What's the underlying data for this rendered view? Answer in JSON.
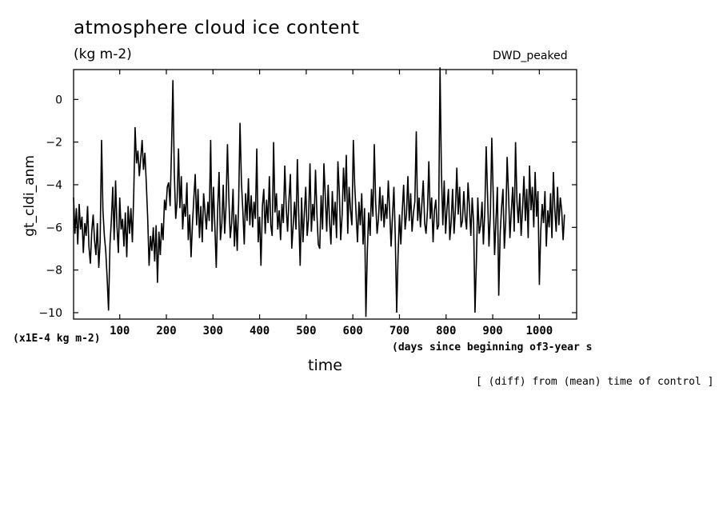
{
  "chart_data": {
    "type": "line",
    "title": "atmosphere cloud ice content",
    "units": "(kg m-2)",
    "run_label": "DWD_peaked",
    "ylabel": "gt_cldi_anm",
    "xlabel": "time",
    "x_note": "(days since beginning of3-year s",
    "y_scale_note": "(x1E-4 kg m-2)",
    "footnote": "[ (diff) from (mean) time of control ]",
    "xlim": [
      1,
      1080
    ],
    "ylim": [
      -10.3,
      1.4
    ],
    "x_ticks": [
      100,
      200,
      300,
      400,
      500,
      600,
      700,
      800,
      900,
      1000
    ],
    "y_ticks": [
      0,
      -2,
      -4,
      -6,
      -8,
      -10
    ],
    "series": [
      {
        "name": "gt_cldi_anm",
        "step": 3,
        "values": [
          -4.6,
          -6.3,
          -5.1,
          -6.8,
          -4.9,
          -6.1,
          -5.5,
          -7.2,
          -5.8,
          -6.4,
          -5.0,
          -6.9,
          -7.7,
          -6.2,
          -5.4,
          -6.6,
          -7.3,
          -5.8,
          -7.9,
          -6.7,
          -1.9,
          -5.2,
          -6.4,
          -7.1,
          -8.4,
          -9.9,
          -6.8,
          -5.7,
          -4.1,
          -6.6,
          -3.8,
          -5.9,
          -7.2,
          -4.6,
          -6.1,
          -5.6,
          -6.9,
          -5.3,
          -7.4,
          -5.0,
          -6.3,
          -5.1,
          -6.7,
          -4.5,
          -1.3,
          -3.0,
          -2.4,
          -3.6,
          -2.8,
          -1.9,
          -3.3,
          -2.5,
          -3.9,
          -5.6,
          -7.8,
          -6.4,
          -7.1,
          -6.0,
          -7.6,
          -5.9,
          -8.6,
          -6.2,
          -7.3,
          -5.8,
          -6.6,
          -4.7,
          -5.2,
          -4.1,
          -3.9,
          -5.0,
          -2.4,
          0.9,
          -3.4,
          -5.6,
          -4.8,
          -2.3,
          -5.1,
          -3.6,
          -6.1,
          -4.9,
          -5.5,
          -3.9,
          -6.6,
          -5.4,
          -7.4,
          -5.8,
          -4.6,
          -3.5,
          -5.9,
          -4.2,
          -6.5,
          -5.0,
          -6.7,
          -4.4,
          -5.3,
          -6.1,
          -4.8,
          -5.7,
          -1.9,
          -6.2,
          -4.1,
          -5.9,
          -7.9,
          -5.2,
          -3.4,
          -6.6,
          -5.8,
          -4.0,
          -6.3,
          -5.0,
          -2.1,
          -4.6,
          -6.5,
          -5.8,
          -4.2,
          -6.9,
          -5.4,
          -7.1,
          -4.8,
          -1.1,
          -3.9,
          -5.2,
          -6.8,
          -4.4,
          -5.7,
          -3.7,
          -5.9,
          -4.5,
          -6.0,
          -4.8,
          -5.6,
          -2.3,
          -6.7,
          -5.5,
          -7.8,
          -5.0,
          -4.2,
          -6.3,
          -4.7,
          -5.8,
          -3.6,
          -5.9,
          -6.4,
          -2.0,
          -5.3,
          -4.4,
          -6.1,
          -5.2,
          -6.6,
          -4.9,
          -5.8,
          -3.1,
          -5.0,
          -6.2,
          -4.7,
          -3.5,
          -7.0,
          -5.9,
          -4.8,
          -6.1,
          -2.8,
          -5.5,
          -7.8,
          -4.6,
          -6.7,
          -5.3,
          -4.1,
          -6.4,
          -5.6,
          -3.0,
          -6.2,
          -4.9,
          -5.7,
          -3.3,
          -5.4,
          -6.8,
          -7.0,
          -4.5,
          -6.1,
          -3.0,
          -4.6,
          -6.2,
          -4.0,
          -5.7,
          -6.8,
          -4.3,
          -5.9,
          -4.8,
          -6.5,
          -2.9,
          -4.4,
          -6.6,
          -5.4,
          -3.2,
          -4.8,
          -2.6,
          -6.3,
          -4.1,
          -5.2,
          -5.9,
          -1.9,
          -4.0,
          -5.4,
          -6.7,
          -4.8,
          -5.9,
          -4.4,
          -6.8,
          -5.1,
          -10.2,
          -7.1,
          -5.3,
          -6.4,
          -4.2,
          -5.5,
          -2.1,
          -4.8,
          -6.3,
          -5.6,
          -4.1,
          -5.7,
          -4.5,
          -6.0,
          -4.9,
          -5.6,
          -3.8,
          -5.2,
          -6.9,
          -5.5,
          -4.1,
          -6.4,
          -10.0,
          -7.3,
          -5.4,
          -6.8,
          -5.2,
          -4.0,
          -6.1,
          -5.4,
          -3.6,
          -5.7,
          -4.4,
          -6.2,
          -5.3,
          -4.8,
          -1.5,
          -5.7,
          -4.6,
          -6.0,
          -4.9,
          -3.8,
          -5.8,
          -6.3,
          -5.2,
          -2.9,
          -5.6,
          -4.6,
          -6.7,
          -5.2,
          -4.7,
          -6.1,
          -5.9,
          1.5,
          -3.4,
          -5.9,
          -3.8,
          -6.3,
          -5.1,
          -4.2,
          -6.6,
          -5.7,
          -4.2,
          -6.3,
          -5.2,
          -3.2,
          -5.4,
          -4.1,
          -6.0,
          -5.7,
          -4.3,
          -5.5,
          -6.1,
          -3.9,
          -5.0,
          -6.4,
          -4.6,
          -5.8,
          -10.0,
          -7.5,
          -4.6,
          -6.3,
          -5.9,
          -4.8,
          -6.8,
          -5.2,
          -2.2,
          -4.6,
          -6.9,
          -5.3,
          -1.8,
          -4.5,
          -7.3,
          -5.6,
          -4.1,
          -9.2,
          -6.3,
          -5.1,
          -4.2,
          -7.0,
          -5.7,
          -2.7,
          -4.5,
          -6.5,
          -5.2,
          -4.1,
          -6.2,
          -2.0,
          -4.8,
          -5.8,
          -4.4,
          -6.4,
          -5.1,
          -3.6,
          -5.7,
          -4.2,
          -6.5,
          -3.1,
          -5.2,
          -4.1,
          -6.0,
          -3.4,
          -5.5,
          -4.3,
          -8.7,
          -6.2,
          -4.9,
          -5.8,
          -4.3,
          -6.9,
          -5.2,
          -6.0,
          -4.4,
          -6.5,
          -3.4,
          -5.1,
          -6.2,
          -4.1,
          -5.9,
          -4.6,
          -5.2,
          -6.6,
          -5.4
        ]
      }
    ]
  }
}
